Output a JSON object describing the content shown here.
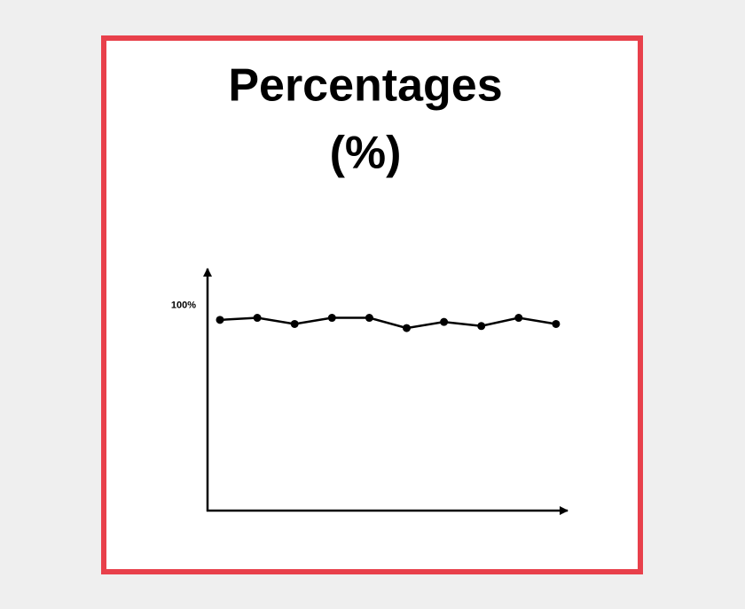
{
  "chart_data": {
    "type": "line",
    "title": [
      "Percentages",
      "(%)"
    ],
    "categories": [
      null,
      null,
      null,
      null,
      null,
      null,
      null,
      null,
      null,
      null
    ],
    "values": [
      93,
      94,
      91,
      94,
      94,
      89,
      92,
      90,
      94,
      91
    ],
    "color": "#000000",
    "ylim": [
      0,
      118
    ],
    "yticks": [
      {
        "value": 100,
        "label": "100%"
      }
    ],
    "grid": false
  }
}
